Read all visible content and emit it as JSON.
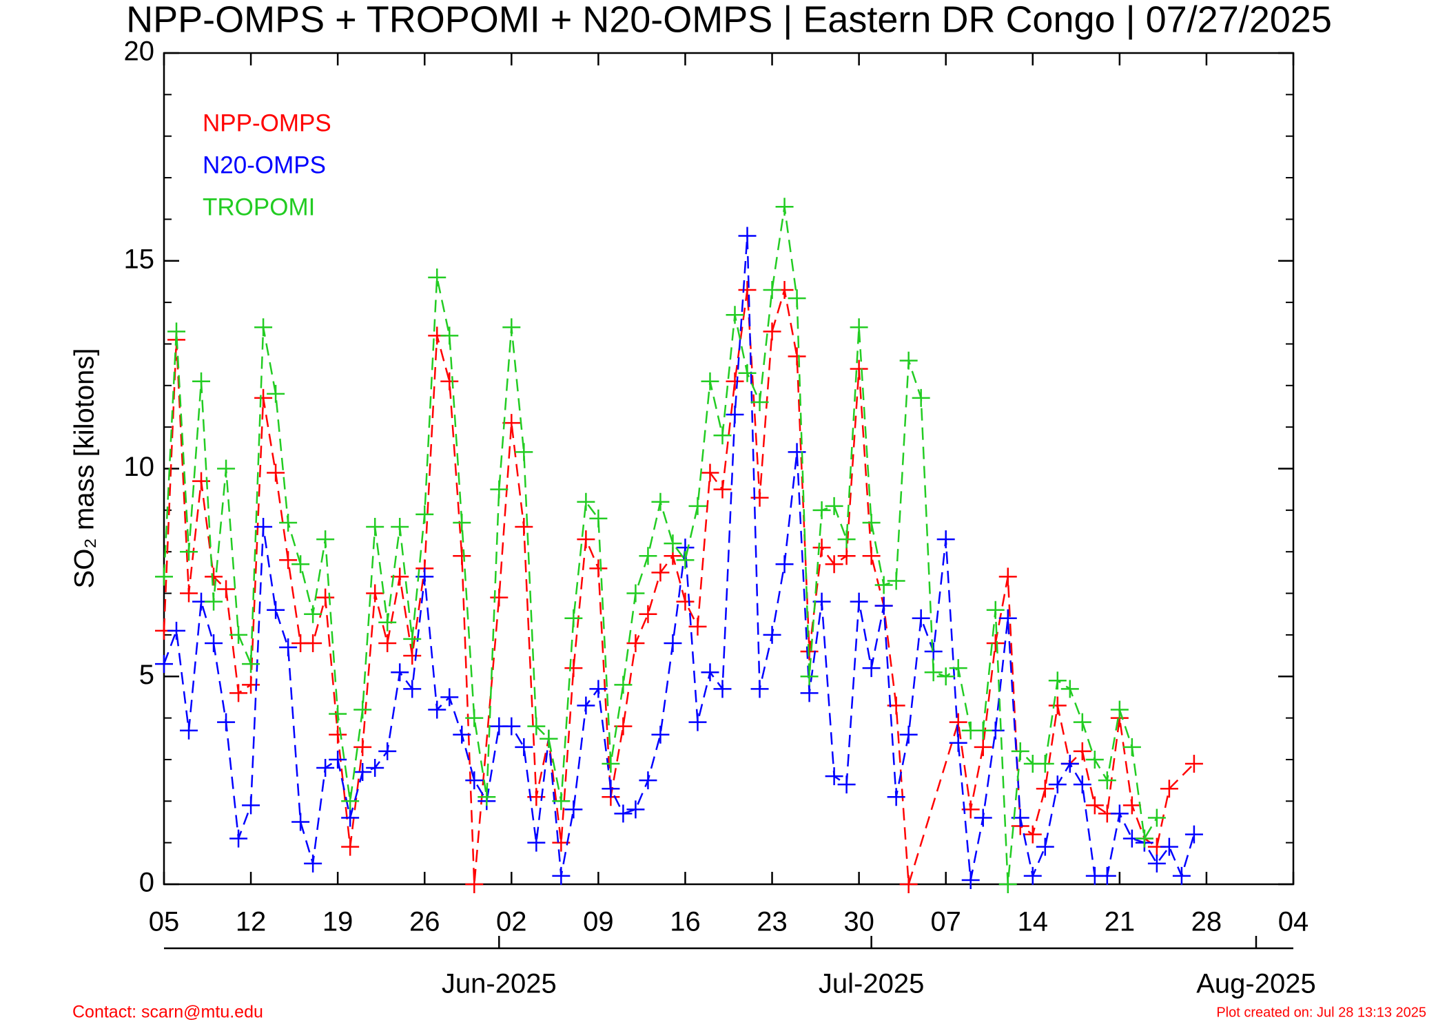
{
  "chart_data": {
    "type": "line",
    "title": "NPP-OMPS + TROPOMI + N20-OMPS | Eastern DR Congo | 07/27/2025",
    "y_label": "SO₂ mass [kilotons]",
    "contact": "Contact: scarn@mtu.edu",
    "footnote": "Plot created on: Jul 28 13:13 2025",
    "legend": "upper left",
    "marker": "+",
    "linestyle": "dashed",
    "xlim": [
      "2025-05-05",
      "2025-08-04"
    ],
    "xticks": [
      {
        "value": "2025-05-05",
        "label": "05"
      },
      {
        "value": "2025-05-12",
        "label": "12"
      },
      {
        "value": "2025-05-19",
        "label": "19"
      },
      {
        "value": "2025-05-26",
        "label": "26"
      },
      {
        "value": "2025-06-02",
        "label": "02"
      },
      {
        "value": "2025-06-09",
        "label": "09"
      },
      {
        "value": "2025-06-16",
        "label": "16"
      },
      {
        "value": "2025-06-23",
        "label": "23"
      },
      {
        "value": "2025-06-30",
        "label": "30"
      },
      {
        "value": "2025-07-07",
        "label": "07"
      },
      {
        "value": "2025-07-14",
        "label": "14"
      },
      {
        "value": "2025-07-21",
        "label": "21"
      },
      {
        "value": "2025-07-28",
        "label": "28"
      },
      {
        "value": "2025-08-04",
        "label": "04"
      }
    ],
    "xticks2": [
      {
        "value": "2025-06-01",
        "label": "Jun-2025"
      },
      {
        "value": "2025-07-01",
        "label": "Jul-2025"
      },
      {
        "value": "2025-08-01",
        "label": "Aug-2025"
      }
    ],
    "ylim": [
      0,
      20
    ],
    "yticks": [
      0,
      5,
      10,
      15,
      20
    ],
    "series": [
      {
        "name": "NPP-OMPS",
        "color": "#ff0000",
        "x": [
          "2025-05-05",
          "2025-05-06",
          "2025-05-07",
          "2025-05-08",
          "2025-05-09",
          "2025-05-10",
          "2025-05-11",
          "2025-05-12",
          "2025-05-13",
          "2025-05-14",
          "2025-05-15",
          "2025-05-16",
          "2025-05-17",
          "2025-05-18",
          "2025-05-19",
          "2025-05-20",
          "2025-05-21",
          "2025-05-22",
          "2025-05-23",
          "2025-05-24",
          "2025-05-25",
          "2025-05-26",
          "2025-05-27",
          "2025-05-28",
          "2025-05-29",
          "2025-05-30",
          "2025-06-01",
          "2025-06-02",
          "2025-06-03",
          "2025-06-04",
          "2025-06-05",
          "2025-06-06",
          "2025-06-07",
          "2025-06-08",
          "2025-06-09",
          "2025-06-10",
          "2025-06-11",
          "2025-06-12",
          "2025-06-13",
          "2025-06-14",
          "2025-06-15",
          "2025-06-16",
          "2025-06-17",
          "2025-06-18",
          "2025-06-19",
          "2025-06-20",
          "2025-06-21",
          "2025-06-22",
          "2025-06-23",
          "2025-06-24",
          "2025-06-25",
          "2025-06-26",
          "2025-06-27",
          "2025-06-28",
          "2025-06-29",
          "2025-06-30",
          "2025-07-01",
          "2025-07-02",
          "2025-07-03",
          "2025-07-04",
          "2025-07-08",
          "2025-07-09",
          "2025-07-10",
          "2025-07-11",
          "2025-07-12",
          "2025-07-13",
          "2025-07-14",
          "2025-07-15",
          "2025-07-16",
          "2025-07-17",
          "2025-07-18",
          "2025-07-19",
          "2025-07-20",
          "2025-07-21",
          "2025-07-22",
          "2025-07-23",
          "2025-07-24",
          "2025-07-25",
          "2025-07-27"
        ],
        "values": [
          6.1,
          13.1,
          7.0,
          9.7,
          7.4,
          7.1,
          4.6,
          4.8,
          11.7,
          9.9,
          7.8,
          5.8,
          5.8,
          6.9,
          3.6,
          0.9,
          3.3,
          7.0,
          5.8,
          7.4,
          5.5,
          7.6,
          13.2,
          12.1,
          7.9,
          0.0,
          6.9,
          11.1,
          8.6,
          2.1,
          3.5,
          1.0,
          5.2,
          8.3,
          7.6,
          2.1,
          3.8,
          5.8,
          6.5,
          7.5,
          7.9,
          6.8,
          6.2,
          9.9,
          9.5,
          12.1,
          14.3,
          9.3,
          13.3,
          14.3,
          12.7,
          5.6,
          8.1,
          7.7,
          7.9,
          12.4,
          7.9,
          6.7,
          4.3,
          0.0,
          3.9,
          1.8,
          3.3,
          5.8,
          7.4,
          1.4,
          1.2,
          2.3,
          4.3,
          2.9,
          3.2,
          1.9,
          1.7,
          4.0,
          1.9,
          1.1,
          0.9,
          2.3,
          2.9
        ]
      },
      {
        "name": "N20-OMPS",
        "color": "#0000ff",
        "x": [
          "2025-05-05",
          "2025-05-06",
          "2025-05-07",
          "2025-05-08",
          "2025-05-09",
          "2025-05-10",
          "2025-05-11",
          "2025-05-12",
          "2025-05-13",
          "2025-05-14",
          "2025-05-15",
          "2025-05-16",
          "2025-05-17",
          "2025-05-18",
          "2025-05-19",
          "2025-05-20",
          "2025-05-21",
          "2025-05-22",
          "2025-05-23",
          "2025-05-24",
          "2025-05-25",
          "2025-05-26",
          "2025-05-27",
          "2025-05-28",
          "2025-05-29",
          "2025-05-30",
          "2025-05-31",
          "2025-06-01",
          "2025-06-02",
          "2025-06-03",
          "2025-06-04",
          "2025-06-05",
          "2025-06-06",
          "2025-06-07",
          "2025-06-08",
          "2025-06-09",
          "2025-06-10",
          "2025-06-11",
          "2025-06-12",
          "2025-06-13",
          "2025-06-14",
          "2025-06-15",
          "2025-06-16",
          "2025-06-17",
          "2025-06-18",
          "2025-06-19",
          "2025-06-20",
          "2025-06-21",
          "2025-06-22",
          "2025-06-23",
          "2025-06-24",
          "2025-06-25",
          "2025-06-26",
          "2025-06-27",
          "2025-06-28",
          "2025-06-29",
          "2025-06-30",
          "2025-07-01",
          "2025-07-02",
          "2025-07-03",
          "2025-07-04",
          "2025-07-05",
          "2025-07-06",
          "2025-07-07",
          "2025-07-08",
          "2025-07-09",
          "2025-07-10",
          "2025-07-11",
          "2025-07-12",
          "2025-07-13",
          "2025-07-14",
          "2025-07-15",
          "2025-07-16",
          "2025-07-17",
          "2025-07-18",
          "2025-07-19",
          "2025-07-20",
          "2025-07-21",
          "2025-07-22",
          "2025-07-23",
          "2025-07-24",
          "2025-07-25",
          "2025-07-26",
          "2025-07-27"
        ],
        "values": [
          5.3,
          6.1,
          3.7,
          6.8,
          5.8,
          3.9,
          1.1,
          1.9,
          8.6,
          6.6,
          5.7,
          1.5,
          0.5,
          2.8,
          3.0,
          1.6,
          2.7,
          2.8,
          3.2,
          5.1,
          4.7,
          7.4,
          4.2,
          4.5,
          3.6,
          2.5,
          2.0,
          3.8,
          3.8,
          3.3,
          1.0,
          3.5,
          0.2,
          1.8,
          4.3,
          4.7,
          2.3,
          1.7,
          1.8,
          2.5,
          3.6,
          5.8,
          8.1,
          3.9,
          5.1,
          4.7,
          11.3,
          15.6,
          4.7,
          6.0,
          7.7,
          10.4,
          4.6,
          6.8,
          2.6,
          2.4,
          6.8,
          5.2,
          6.7,
          2.1,
          3.6,
          6.4,
          5.6,
          8.3,
          3.4,
          0.1,
          1.6,
          3.7,
          6.4,
          1.6,
          0.2,
          0.9,
          2.4,
          2.9,
          2.4,
          0.2,
          0.2,
          1.7,
          1.1,
          1.0,
          0.5,
          0.9,
          0.2,
          1.2
        ]
      },
      {
        "name": "TROPOMI",
        "color": "#22cc22",
        "x": [
          "2025-05-05",
          "2025-05-06",
          "2025-05-07",
          "2025-05-08",
          "2025-05-09",
          "2025-05-10",
          "2025-05-11",
          "2025-05-12",
          "2025-05-13",
          "2025-05-14",
          "2025-05-15",
          "2025-05-16",
          "2025-05-17",
          "2025-05-18",
          "2025-05-19",
          "2025-05-20",
          "2025-05-21",
          "2025-05-22",
          "2025-05-23",
          "2025-05-24",
          "2025-05-25",
          "2025-05-26",
          "2025-05-27",
          "2025-05-28",
          "2025-05-29",
          "2025-05-30",
          "2025-05-31",
          "2025-06-01",
          "2025-06-02",
          "2025-06-03",
          "2025-06-04",
          "2025-06-05",
          "2025-06-06",
          "2025-06-07",
          "2025-06-08",
          "2025-06-09",
          "2025-06-10",
          "2025-06-11",
          "2025-06-12",
          "2025-06-13",
          "2025-06-14",
          "2025-06-15",
          "2025-06-16",
          "2025-06-17",
          "2025-06-18",
          "2025-06-19",
          "2025-06-20",
          "2025-06-21",
          "2025-06-22",
          "2025-06-23",
          "2025-06-24",
          "2025-06-25",
          "2025-06-26",
          "2025-06-27",
          "2025-06-28",
          "2025-06-29",
          "2025-06-30",
          "2025-07-01",
          "2025-07-02",
          "2025-07-03",
          "2025-07-04",
          "2025-07-05",
          "2025-07-06",
          "2025-07-07",
          "2025-07-08",
          "2025-07-09",
          "2025-07-10",
          "2025-07-11",
          "2025-07-12",
          "2025-07-13",
          "2025-07-14",
          "2025-07-15",
          "2025-07-16",
          "2025-07-17",
          "2025-07-18",
          "2025-07-19",
          "2025-07-20",
          "2025-07-21",
          "2025-07-22",
          "2025-07-23",
          "2025-07-24"
        ],
        "values": [
          7.4,
          13.3,
          8.0,
          12.1,
          6.8,
          10.0,
          6.0,
          5.3,
          13.4,
          11.8,
          8.7,
          7.7,
          6.5,
          8.3,
          4.1,
          2.0,
          4.2,
          8.6,
          6.3,
          8.6,
          5.9,
          8.9,
          14.6,
          13.2,
          8.7,
          4.0,
          2.1,
          9.5,
          13.4,
          10.4,
          3.8,
          3.5,
          2.0,
          6.4,
          9.2,
          8.8,
          2.9,
          4.8,
          7.0,
          7.9,
          9.2,
          8.2,
          7.8,
          9.1,
          12.1,
          10.8,
          13.7,
          12.3,
          11.6,
          14.3,
          16.3,
          14.1,
          5.0,
          9.0,
          9.1,
          8.3,
          13.4,
          8.7,
          7.2,
          7.3,
          12.6,
          11.7,
          5.1,
          5.0,
          5.2,
          3.7,
          3.7,
          6.6,
          0.0,
          3.2,
          2.9,
          2.9,
          4.9,
          4.7,
          3.9,
          3.0,
          2.5,
          4.2,
          3.3,
          1.1,
          1.6
        ]
      }
    ]
  }
}
